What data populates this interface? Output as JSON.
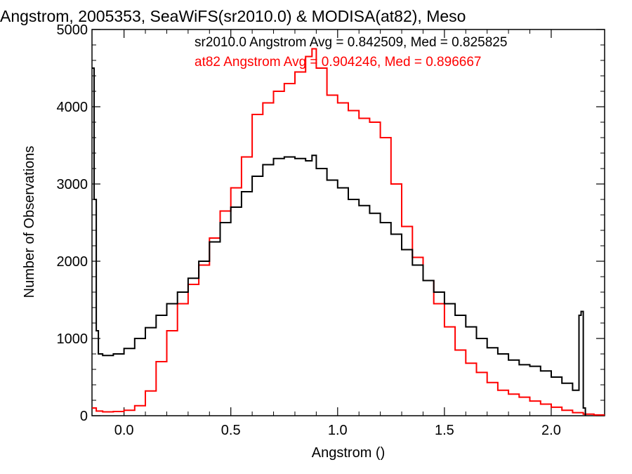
{
  "chart_data": {
    "type": "line",
    "title": "Angstrom, 2005353, SeaWiFS(sr2010.0) & MODISA(at82), Meso",
    "xlabel": "Angstrom ()",
    "ylabel": "Number of Observations",
    "xlim": [
      -0.15,
      2.25
    ],
    "ylim": [
      0,
      5000
    ],
    "xticks": [
      0.0,
      0.5,
      1.0,
      1.5,
      2.0
    ],
    "xtick_labels": [
      "0.0",
      "0.5",
      "1.0",
      "1.5",
      "2.0"
    ],
    "yticks": [
      0,
      1000,
      2000,
      3000,
      4000,
      5000
    ],
    "ytick_labels": [
      "0",
      "1000",
      "2000",
      "3000",
      "4000",
      "5000"
    ],
    "grid": false,
    "legend_position": "top-right",
    "series": [
      {
        "name": "sr2010.0",
        "legend_text": "sr2010.0 Angstrom Avg = 0.842509, Med = 0.825825",
        "color": "#000000",
        "x": [
          -0.15,
          -0.14,
          -0.13,
          -0.12,
          -0.1,
          -0.05,
          0.0,
          0.05,
          0.1,
          0.15,
          0.2,
          0.25,
          0.3,
          0.35,
          0.4,
          0.45,
          0.5,
          0.55,
          0.6,
          0.65,
          0.7,
          0.75,
          0.8,
          0.85,
          0.88,
          0.9,
          0.95,
          1.0,
          1.05,
          1.1,
          1.15,
          1.2,
          1.25,
          1.3,
          1.35,
          1.4,
          1.45,
          1.5,
          1.55,
          1.6,
          1.65,
          1.7,
          1.75,
          1.8,
          1.85,
          1.9,
          1.95,
          2.0,
          2.05,
          2.1,
          2.13,
          2.14,
          2.15,
          2.16
        ],
        "y": [
          4500,
          2800,
          1100,
          800,
          780,
          800,
          870,
          1000,
          1140,
          1300,
          1450,
          1600,
          1780,
          2000,
          2250,
          2500,
          2700,
          2900,
          3100,
          3250,
          3330,
          3350,
          3330,
          3300,
          3370,
          3200,
          3050,
          2950,
          2800,
          2720,
          2620,
          2500,
          2350,
          2150,
          1950,
          1750,
          1600,
          1450,
          1300,
          1150,
          1000,
          880,
          800,
          720,
          660,
          640,
          580,
          500,
          420,
          330,
          1300,
          1350,
          100,
          0
        ]
      },
      {
        "name": "at82",
        "legend_text": "at82 Angstrom Avg = 0.904246, Med = 0.896667",
        "color": "#ff0000",
        "x": [
          -0.15,
          -0.13,
          -0.1,
          -0.05,
          0.0,
          0.05,
          0.1,
          0.15,
          0.2,
          0.25,
          0.3,
          0.35,
          0.4,
          0.45,
          0.5,
          0.55,
          0.6,
          0.65,
          0.7,
          0.75,
          0.8,
          0.85,
          0.88,
          0.9,
          0.95,
          1.0,
          1.05,
          1.1,
          1.15,
          1.2,
          1.25,
          1.3,
          1.35,
          1.4,
          1.45,
          1.5,
          1.55,
          1.6,
          1.65,
          1.7,
          1.75,
          1.8,
          1.85,
          1.9,
          1.95,
          2.0,
          2.05,
          2.1,
          2.15,
          2.2,
          2.25
        ],
        "y": [
          100,
          60,
          50,
          55,
          70,
          130,
          320,
          700,
          1100,
          1450,
          1700,
          1950,
          2300,
          2650,
          2950,
          3350,
          3900,
          4050,
          4200,
          4300,
          4450,
          4650,
          4750,
          4500,
          4150,
          4050,
          3950,
          3850,
          3800,
          3600,
          3000,
          2450,
          2050,
          1750,
          1450,
          1150,
          850,
          680,
          560,
          430,
          330,
          280,
          240,
          190,
          150,
          110,
          70,
          40,
          20,
          10,
          5
        ]
      }
    ]
  }
}
